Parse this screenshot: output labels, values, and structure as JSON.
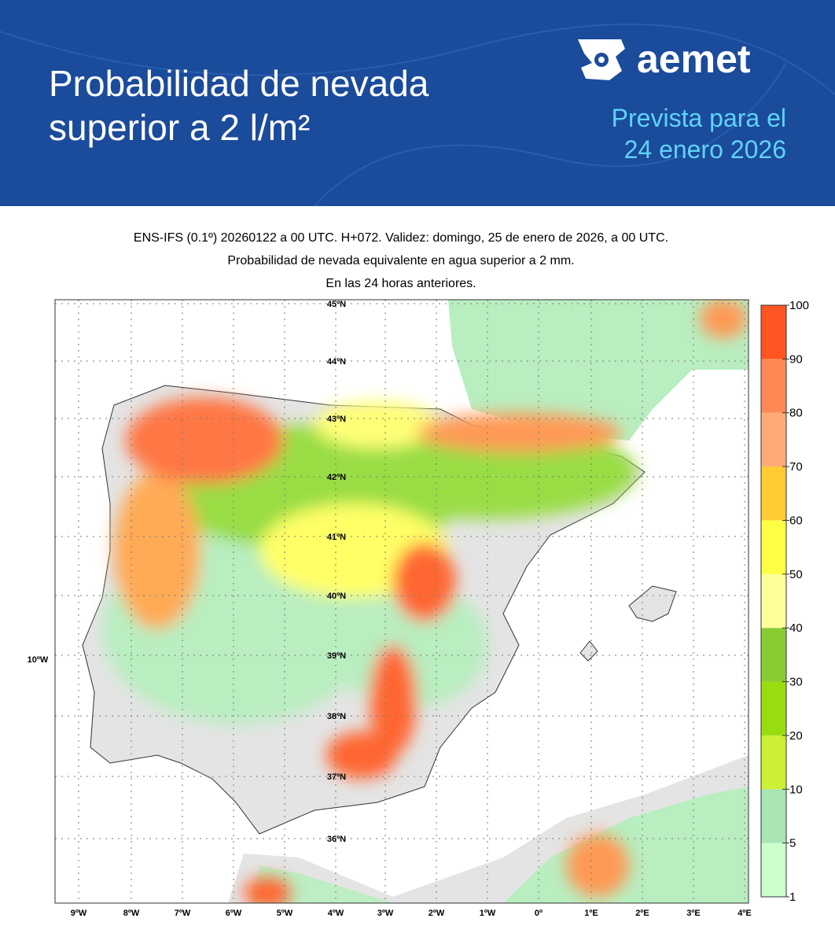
{
  "header": {
    "title_lines": [
      "Probabilidad de nevada",
      "superior a 2 l/m²"
    ],
    "brand": "aemet",
    "subtitle_lines": [
      "Prevista para el",
      "24 enero 2026"
    ]
  },
  "map": {
    "caption_lines": [
      "ENS-IFS (0.1º) 20260122 a 00 UTC. H+072. Validez: domingo, 25 de enero de 2026, a 00 UTC.",
      "Probabilidad de nevada equivalente en agua superior a 2 mm.",
      "En las 24 horas anteriores."
    ],
    "lat_labels": [
      "45ºN",
      "44ºN",
      "43ºN",
      "42ºN",
      "41ºN",
      "40ºN",
      "39ºN",
      "38ºN",
      "37ºN",
      "36ºN"
    ],
    "lon_labels": [
      "9ºW",
      "8ºW",
      "7ºW",
      "6ºW",
      "5ºW",
      "4ºW",
      "3ºW",
      "2ºW",
      "1ºW",
      "0º",
      "1ºE",
      "2ºE",
      "3ºE",
      "4ºE"
    ],
    "side_label": "10ºW"
  },
  "legend": {
    "ticks": [
      1,
      5,
      10,
      20,
      30,
      40,
      50,
      60,
      70,
      80,
      90,
      100
    ],
    "colors": [
      "#ccffcc",
      "#a8e4b4",
      "#ccf033",
      "#99dd11",
      "#88cc33",
      "#ffff99",
      "#ffff44",
      "#ffcc33",
      "#ffaa77",
      "#ff8855",
      "#ff5522"
    ]
  }
}
